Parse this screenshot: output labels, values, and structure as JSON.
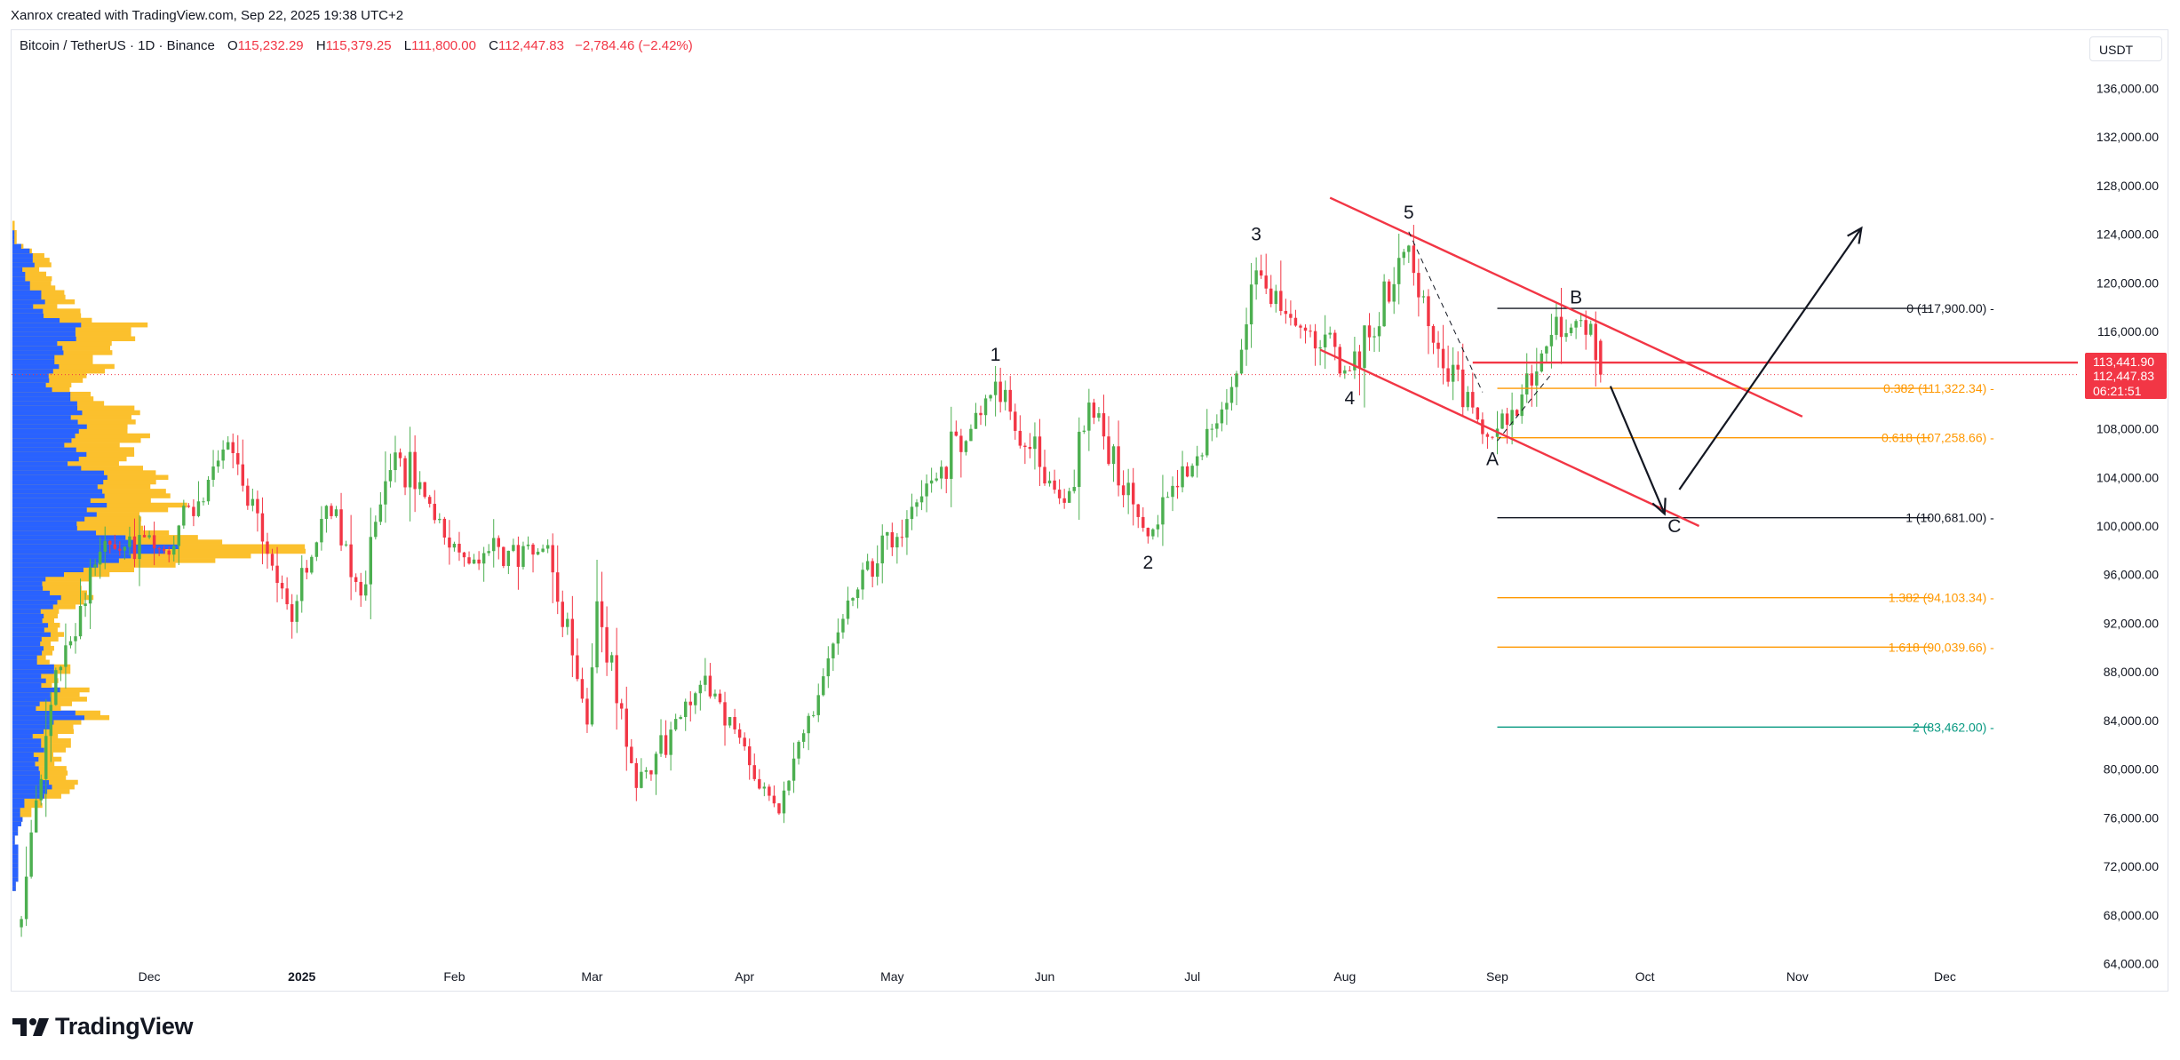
{
  "header": {
    "credit": "Xanrox created with TradingView.com, Sep 22, 2025 19:38 UTC+2",
    "symbol": "Bitcoin / TetherUS · 1D · Binance",
    "open_label": "O",
    "open": "115,232.29",
    "high_label": "H",
    "high": "115,379.25",
    "low_label": "L",
    "low": "111,800.00",
    "close_label": "C",
    "close": "112,447.83",
    "change": "−2,784.46 (−2.42%)"
  },
  "price_scale": {
    "unit": "USDT",
    "ticks": [
      "136,000.00",
      "132,000.00",
      "128,000.00",
      "124,000.00",
      "120,000.00",
      "116,000.00",
      "112,000.00",
      "108,000.00",
      "104,000.00",
      "100,000.00",
      "96,000.00",
      "92,000.00",
      "88,000.00",
      "84,000.00",
      "80,000.00",
      "76,000.00",
      "72,000.00",
      "68,000.00",
      "64,000.00"
    ],
    "badges": [
      {
        "text": "113,441.90",
        "color": "#f23645"
      },
      {
        "text": "112,447.83",
        "color": "#f23645"
      },
      {
        "text": "06:21:51",
        "color": "#f23645"
      }
    ]
  },
  "time_scale": {
    "labels": [
      {
        "text": "Dec",
        "bold": false
      },
      {
        "text": "2025",
        "bold": true
      },
      {
        "text": "Feb",
        "bold": false
      },
      {
        "text": "Mar",
        "bold": false
      },
      {
        "text": "Apr",
        "bold": false
      },
      {
        "text": "May",
        "bold": false
      },
      {
        "text": "Jun",
        "bold": false
      },
      {
        "text": "Jul",
        "bold": false
      },
      {
        "text": "Aug",
        "bold": false
      },
      {
        "text": "Sep",
        "bold": false
      },
      {
        "text": "Oct",
        "bold": false
      },
      {
        "text": "Nov",
        "bold": false
      },
      {
        "text": "Dec",
        "bold": false
      }
    ]
  },
  "chart_data": {
    "type": "candlestick",
    "symbol": "Bitcoin / TetherUS",
    "interval": "1D",
    "exchange": "Binance",
    "y_unit": "USDT",
    "ylim": [
      62000,
      138000
    ],
    "xlim": [
      "2024-11-03",
      "2025-12-28"
    ],
    "colors": {
      "up": "#089981",
      "up_body": "#4caf50",
      "down": "#f23645",
      "profile_up": "#2962ff",
      "profile_down": "#fbc02d"
    },
    "key_points": [
      {
        "date": "2024-11-05",
        "price": 68000
      },
      {
        "date": "2024-11-12",
        "price": 88000
      },
      {
        "date": "2024-11-22",
        "price": 99000
      },
      {
        "date": "2024-12-05",
        "price": 98000
      },
      {
        "date": "2024-12-17",
        "price": 107000
      },
      {
        "date": "2024-12-30",
        "price": 92500
      },
      {
        "date": "2025-01-06",
        "price": 102000
      },
      {
        "date": "2025-01-13",
        "price": 94500
      },
      {
        "date": "2025-01-20",
        "price": 106000
      },
      {
        "date": "2025-01-27",
        "price": 102000
      },
      {
        "date": "2025-02-03",
        "price": 97000
      },
      {
        "date": "2025-02-20",
        "price": 98000
      },
      {
        "date": "2025-02-28",
        "price": 84000
      },
      {
        "date": "2025-03-02",
        "price": 94000
      },
      {
        "date": "2025-03-10",
        "price": 78500
      },
      {
        "date": "2025-03-24",
        "price": 87500
      },
      {
        "date": "2025-03-31",
        "price": 82500
      },
      {
        "date": "2025-04-08",
        "price": 76500
      },
      {
        "date": "2025-04-22",
        "price": 93500
      },
      {
        "date": "2025-05-08",
        "price": 103000
      },
      {
        "date": "2025-05-22",
        "price": 111500
      },
      {
        "date": "2025-06-05",
        "price": 101500
      },
      {
        "date": "2025-06-10",
        "price": 110000
      },
      {
        "date": "2025-06-22",
        "price": 99000
      },
      {
        "date": "2025-07-09",
        "price": 111000
      },
      {
        "date": "2025-07-14",
        "price": 121500
      },
      {
        "date": "2025-07-25",
        "price": 115500
      },
      {
        "date": "2025-08-02",
        "price": 112500
      },
      {
        "date": "2025-08-14",
        "price": 123500
      },
      {
        "date": "2025-08-21",
        "price": 113000
      },
      {
        "date": "2025-08-29",
        "price": 108000
      },
      {
        "date": "2025-09-01",
        "price": 107500
      },
      {
        "date": "2025-09-12",
        "price": 115500
      },
      {
        "date": "2025-09-18",
        "price": 117000
      },
      {
        "date": "2025-09-22",
        "price": 112447.83
      }
    ],
    "last_candle": {
      "date": "2025-09-22",
      "open": 115232.29,
      "high": 115379.25,
      "low": 111800.0,
      "close": 112447.83
    },
    "wave_labels": [
      {
        "text": "1",
        "date": "2025-05-22",
        "price": 113600
      },
      {
        "text": "2",
        "date": "2025-06-22",
        "price": 96500
      },
      {
        "text": "3",
        "date": "2025-07-14",
        "price": 123500
      },
      {
        "text": "4",
        "date": "2025-08-02",
        "price": 110000
      },
      {
        "text": "5",
        "date": "2025-08-14",
        "price": 125300
      },
      {
        "text": "A",
        "date": "2025-08-31",
        "price": 105000
      },
      {
        "text": "B",
        "date": "2025-09-17",
        "price": 118300
      },
      {
        "text": "C",
        "date": "2025-10-07",
        "price": 99500
      }
    ],
    "fib_levels": [
      {
        "ratio": "0",
        "price": 117900,
        "label": "0 (117,900.00)",
        "color": "#131722"
      },
      {
        "ratio": "0.382",
        "price": 111322.34,
        "label": "0.382 (111,322.34)",
        "color": "#ff9800"
      },
      {
        "ratio": "0.618",
        "price": 107258.66,
        "label": "0.618 (107,258.66)",
        "color": "#ff9800"
      },
      {
        "ratio": "1",
        "price": 100681,
        "label": "1 (100,681.00)",
        "color": "#131722"
      },
      {
        "ratio": "1.382",
        "price": 94103.34,
        "label": "1.382 (94,103.34)",
        "color": "#ff9800"
      },
      {
        "ratio": "1.618",
        "price": 90039.66,
        "label": "1.618 (90,039.66)",
        "color": "#ff9800"
      },
      {
        "ratio": "2",
        "price": 83462,
        "label": "2 (83,462.00)",
        "color": "#089981"
      }
    ],
    "horizontal_level": {
      "price": 113441.9,
      "color": "#f23645"
    },
    "channel": {
      "upper": [
        {
          "date": "2025-07-29",
          "price": 127000
        },
        {
          "date": "2025-11-02",
          "price": 109000
        }
      ],
      "lower": [
        {
          "date": "2025-07-27",
          "price": 114500
        },
        {
          "date": "2025-10-12",
          "price": 100000
        }
      ]
    },
    "projection": [
      {
        "date": "2025-09-24",
        "price": 111500
      },
      {
        "date": "2025-10-05",
        "price": 101000
      },
      {
        "date": "2025-10-08",
        "price": 103000
      },
      {
        "date": "2025-11-14",
        "price": 124500
      }
    ]
  },
  "brand": {
    "name": "TradingView"
  }
}
